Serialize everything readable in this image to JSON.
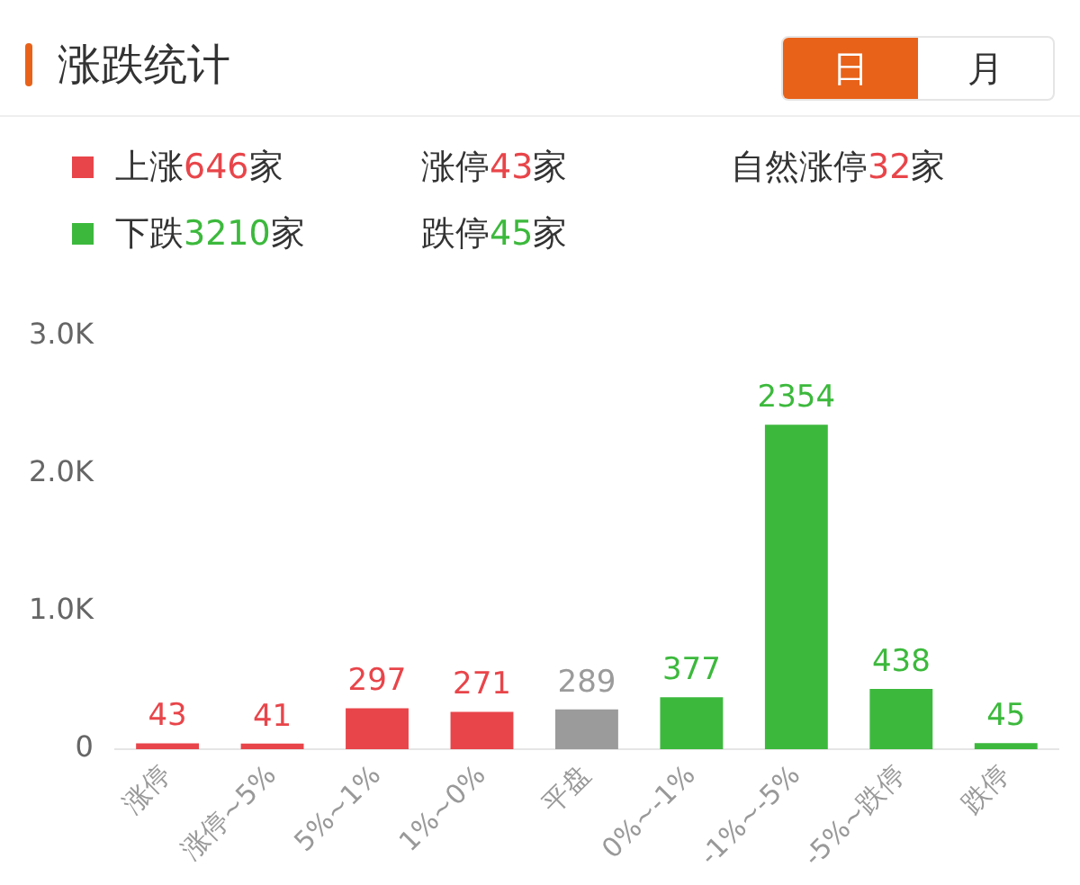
{
  "chart_data": {
    "type": "bar",
    "title": "涨跌统计",
    "categories": [
      "涨停",
      "涨停~5%",
      "5%~1%",
      "1%~0%",
      "平盘",
      "0%~-1%",
      "-1%~-5%",
      "-5%~跌停",
      "跌停"
    ],
    "values": [
      43,
      41,
      297,
      271,
      289,
      377,
      2354,
      438,
      45
    ],
    "colors": [
      "#e8454a",
      "#e8454a",
      "#e8454a",
      "#e8454a",
      "#9b9b9b",
      "#3cb93c",
      "#3cb93c",
      "#3cb93c",
      "#3cb93c"
    ],
    "ylim": [
      0,
      3000
    ],
    "yticks": [
      0,
      {
        "value": 1000,
        "label": "1.0K"
      },
      {
        "value": 2000,
        "label": "2.0K"
      },
      {
        "value": 3000,
        "label": "3.0K"
      }
    ],
    "data_labels": true,
    "annotations": [
      "上涨646家",
      "涨停43家",
      "自然涨停32家",
      "下跌3210家",
      "跌停45家",
      "日",
      "月"
    ]
  }
}
